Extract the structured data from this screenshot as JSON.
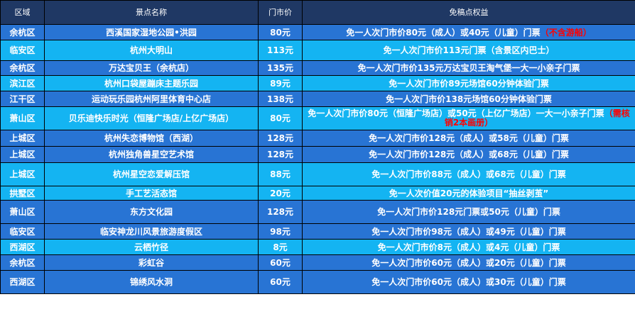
{
  "header": {
    "district": "区域",
    "name": "景点名称",
    "price": "门市价",
    "benefit": "免稿点权益"
  },
  "rows": [
    {
      "district": "余杭区",
      "name": "西溪国家湿地公园•洪园",
      "price": "80元",
      "benefit": "免一人次门市价80元（成人）或40元（儿童）门票",
      "note": "（不含游船）",
      "shade": "dark",
      "h": 22
    },
    {
      "district": "临安区",
      "name": "杭州大明山",
      "price": "113元",
      "benefit": "免一人次门市价113元门票（含景区内巴士）",
      "note": "",
      "shade": "light",
      "h": 29
    },
    {
      "district": "余杭区",
      "name": "万达宝贝王（余杭店）",
      "price": "135元",
      "benefit": "免一人次门市价135元万达宝贝王淘气堡一大一小亲子门票",
      "note": "",
      "shade": "dark",
      "h": 21
    },
    {
      "district": "滨江区",
      "name": "杭州口袋屋蹦床主题乐园",
      "price": "89元",
      "benefit": "免一人次门市价89元场馆60分钟体验门票",
      "note": "",
      "shade": "light",
      "h": 22
    },
    {
      "district": "江干区",
      "name": "运动玩乐园杭州阿里体育中心店",
      "price": "138元",
      "benefit": "免一人次门市价138元场馆60分钟体验门票",
      "note": "",
      "shade": "dark",
      "h": 22
    },
    {
      "district": "萧山区",
      "name": "贝乐迪快乐时光（恒隆广场店/上亿广场店）",
      "price": "80元",
      "benefit": "免一人次门市价80元（恒隆广场店）或50元（上亿广场店）一大一小亲子门票",
      "note": "（需核销2本画册）",
      "shade": "light",
      "h": 33,
      "wrap": true
    },
    {
      "district": "上城区",
      "name": "杭州失恋博物馆（西湖）",
      "price": "128元",
      "benefit": "免一人次门市价128元（成人）或58元（儿童）门票",
      "note": "",
      "shade": "dark",
      "h": 23
    },
    {
      "district": "上城区",
      "name": "杭州独角兽星空艺术馆",
      "price": "128元",
      "benefit": "免一人次门市价128元（成人）或68元（儿童）门票",
      "note": "",
      "shade": "dark",
      "h": 23
    },
    {
      "district": "上城区",
      "name": "杭州星空恋爱解压馆",
      "price": "88元",
      "benefit": "免一人次门市价88元（成人）或68元（儿童）门票",
      "note": "",
      "shade": "light",
      "h": 33
    },
    {
      "district": "拱墅区",
      "name": "手工艺活态馆",
      "price": "20元",
      "benefit": "免一人次价值20元的体验项目“抽丝剥茧”",
      "note": "",
      "shade": "light",
      "h": 20
    },
    {
      "district": "萧山区",
      "name": "东方文化园",
      "price": "128元",
      "benefit": "免一人次门市价128元门票或50元（儿童）门票",
      "note": "",
      "shade": "dark",
      "h": 33
    },
    {
      "district": "临安区",
      "name": "临安神龙川风景旅游度假区",
      "price": "98元",
      "benefit": "免一人次门市价98元（成人）或49元（儿童）门票",
      "note": "",
      "shade": "dark",
      "h": 22
    },
    {
      "district": "西湖区",
      "name": "云栖竹径",
      "price": "8元",
      "benefit": "免一人次门市价8元（成人）或4元（儿童）门票",
      "note": "",
      "shade": "light",
      "h": 22
    },
    {
      "district": "余杭区",
      "name": "彩虹谷",
      "price": "60元",
      "benefit": "免一人次门市价60元（成人）或20元（儿童）门票",
      "note": "",
      "shade": "dark",
      "h": 22
    },
    {
      "district": "西湖区",
      "name": "锦绣风水洞",
      "price": "60元",
      "benefit": "免一人次门市价60元（成人）或30元（儿童）门票",
      "note": "",
      "shade": "dark",
      "h": 33
    }
  ]
}
